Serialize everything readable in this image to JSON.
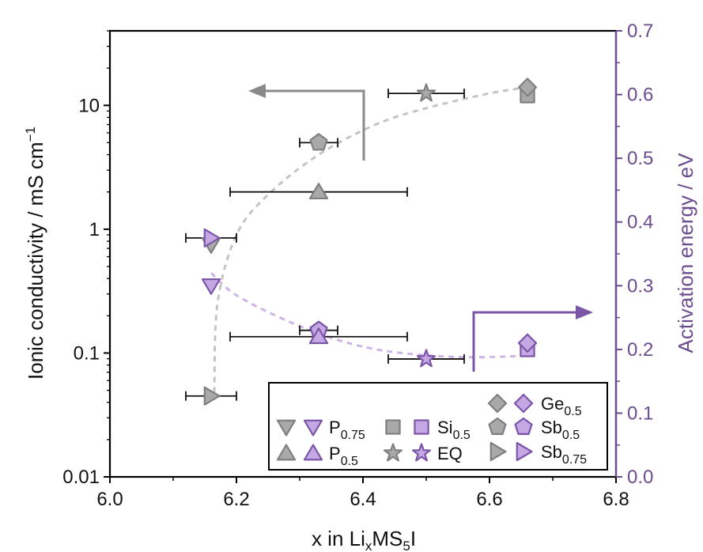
{
  "chart_data": {
    "type": "scatter",
    "xlabel": "x in Li_xMS_5I",
    "ylabel_left": "Ionic conductivity / mS cm^-1",
    "ylabel_right": "Activation energy / eV",
    "xlim": [
      6.0,
      6.8
    ],
    "ylim_left": [
      0.01,
      40
    ],
    "ylim_right": [
      0.0,
      0.7
    ],
    "yscale_left": "log",
    "x_ticks": [
      "6.0",
      "6.2",
      "6.4",
      "6.6",
      "6.8"
    ],
    "y_left_ticks": [
      "0.01",
      "0.1",
      "1",
      "10"
    ],
    "y_right_ticks": [
      "0.0",
      "0.1",
      "0.2",
      "0.3",
      "0.4",
      "0.5",
      "0.6",
      "0.7"
    ],
    "colors": {
      "conductivity": "#9e9e9e",
      "activation": "#b99ad6",
      "right_axis": "#6b4c8f"
    },
    "legend_placement": "bottom-right",
    "legend": [
      {
        "label": "P",
        "sub": "0.75",
        "marker": "triangle-down"
      },
      {
        "label": "P",
        "sub": "0.5",
        "marker": "triangle-up"
      },
      {
        "label": "Si",
        "sub": "0.5",
        "marker": "square"
      },
      {
        "label": "EQ",
        "sub": "",
        "marker": "star"
      },
      {
        "label": "Ge",
        "sub": "0.5",
        "marker": "diamond"
      },
      {
        "label": "Sb",
        "sub": "0.5",
        "marker": "pentagon"
      },
      {
        "label": "Sb",
        "sub": "0.75",
        "marker": "triangle-right"
      }
    ],
    "series": [
      {
        "axis": "left",
        "points": [
          {
            "compound": "Sb0.75",
            "marker": "triangle-right",
            "x": 6.16,
            "y": 0.045,
            "xerr": [
              6.12,
              6.2
            ]
          },
          {
            "compound": "P0.75",
            "marker": "triangle-down",
            "x": 6.16,
            "y": 0.75
          },
          {
            "compound": "P0.5",
            "marker": "triangle-up",
            "x": 6.33,
            "y": 2.0,
            "xerr": [
              6.19,
              6.47
            ]
          },
          {
            "compound": "Sb0.5",
            "marker": "pentagon",
            "x": 6.33,
            "y": 5.0,
            "xerr": [
              6.3,
              6.36
            ]
          },
          {
            "compound": "EQ",
            "marker": "star",
            "x": 6.5,
            "y": 12.5,
            "xerr": [
              6.44,
              6.56
            ]
          },
          {
            "compound": "Si0.5",
            "marker": "square",
            "x": 6.66,
            "y": 12.0
          },
          {
            "compound": "Ge0.5",
            "marker": "diamond",
            "x": 6.66,
            "y": 14.0
          }
        ]
      },
      {
        "axis": "right",
        "points": [
          {
            "compound": "P0.75",
            "marker": "triangle-down",
            "x": 6.16,
            "y": 0.3
          },
          {
            "compound": "Sb0.75",
            "marker": "triangle-right",
            "x": 6.16,
            "y": 0.375,
            "xerr": [
              6.12,
              6.2
            ]
          },
          {
            "compound": "Sb0.5",
            "marker": "pentagon",
            "x": 6.33,
            "y": 0.23,
            "xerr": [
              6.3,
              6.36
            ]
          },
          {
            "compound": "P0.5",
            "marker": "triangle-up",
            "x": 6.33,
            "y": 0.22,
            "xerr": [
              6.19,
              6.47
            ]
          },
          {
            "compound": "EQ",
            "marker": "star",
            "x": 6.5,
            "y": 0.185,
            "xerr": [
              6.44,
              6.56
            ]
          },
          {
            "compound": "Si0.5",
            "marker": "square",
            "x": 6.66,
            "y": 0.2
          },
          {
            "compound": "Ge0.5",
            "marker": "diamond",
            "x": 6.66,
            "y": 0.21
          }
        ]
      }
    ],
    "trend_left": [
      [
        6.165,
        0.048
      ],
      [
        6.17,
        0.25
      ],
      [
        6.2,
        0.9
      ],
      [
        6.25,
        1.9
      ],
      [
        6.33,
        4.0
      ],
      [
        6.42,
        7.0
      ],
      [
        6.5,
        9.5
      ],
      [
        6.6,
        12.5
      ],
      [
        6.66,
        14.0
      ]
    ],
    "trend_right": [
      [
        6.16,
        0.32
      ],
      [
        6.2,
        0.285
      ],
      [
        6.28,
        0.245
      ],
      [
        6.36,
        0.215
      ],
      [
        6.44,
        0.197
      ],
      [
        6.55,
        0.188
      ],
      [
        6.66,
        0.19
      ]
    ]
  }
}
